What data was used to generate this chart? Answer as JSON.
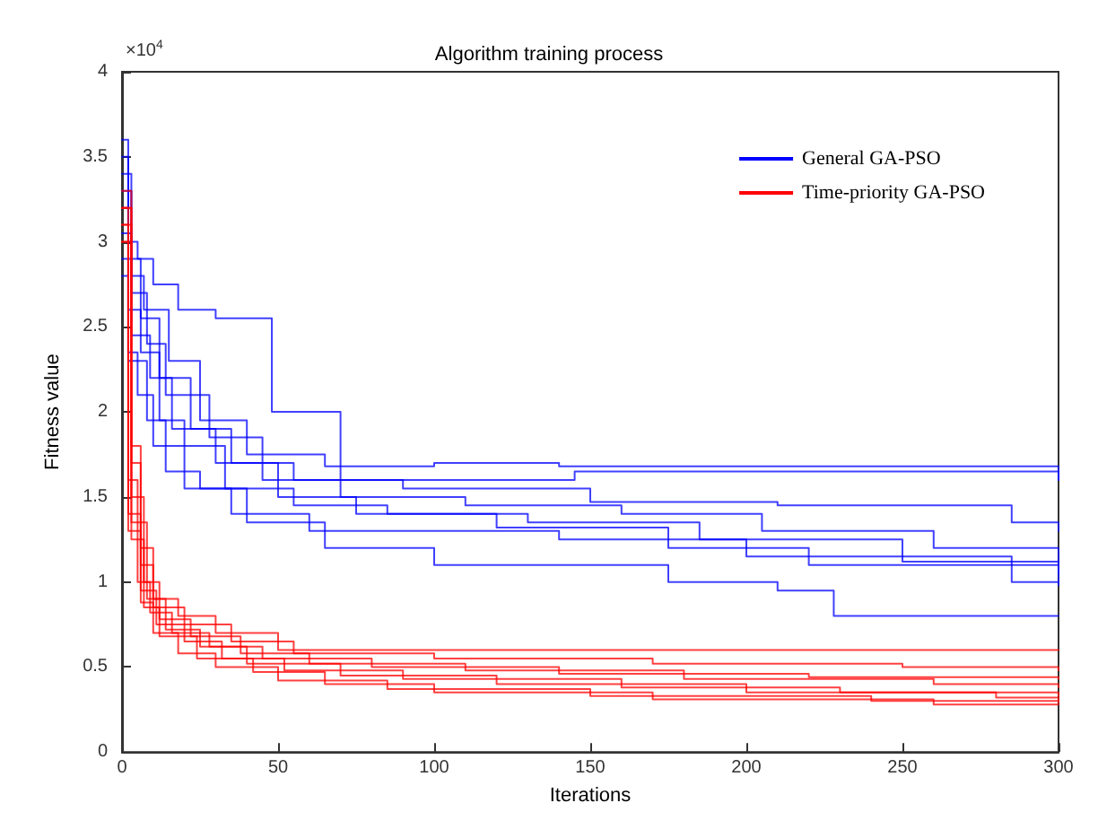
{
  "chart_data": {
    "type": "step",
    "title": "Algorithm training process",
    "xlabel": "Iterations",
    "ylabel": "Fitness value",
    "annotations": [
      "×10$^{4}$"
    ],
    "xlim": [
      0,
      300
    ],
    "xticks": [
      0,
      50,
      100,
      150,
      200,
      250,
      300
    ],
    "ylim": [
      0,
      4
    ],
    "yticks": [
      0,
      0.5,
      1,
      1.5,
      2,
      2.5,
      3,
      3.5,
      4
    ],
    "grid": false,
    "legend": "top right",
    "marker": "none",
    "line_style": "solid",
    "series": [
      {
        "name": "General GA-PSO",
        "color": "#0000ff",
        "x": [
          0,
          2,
          5,
          10,
          18,
          30,
          48,
          70,
          130,
          145,
          300
        ],
        "values": [
          3.6,
          3.0,
          2.9,
          2.75,
          2.6,
          2.55,
          2.0,
          1.6,
          1.6,
          1.65,
          1.6
        ]
      },
      {
        "color": "#0000ff",
        "x": [
          0,
          3,
          7,
          15,
          25,
          40,
          65,
          100,
          140,
          300
        ],
        "values": [
          3.4,
          2.8,
          2.6,
          2.3,
          1.95,
          1.75,
          1.68,
          1.7,
          1.68,
          1.6
        ]
      },
      {
        "color": "#0000ff",
        "x": [
          0,
          2,
          6,
          12,
          22,
          35,
          55,
          90,
          150,
          210,
          285,
          300
        ],
        "values": [
          3.5,
          2.9,
          2.55,
          2.2,
          1.9,
          1.7,
          1.6,
          1.55,
          1.47,
          1.45,
          1.35,
          1.3
        ]
      },
      {
        "color": "#0000ff",
        "x": [
          0,
          3,
          8,
          14,
          28,
          45,
          70,
          110,
          160,
          205,
          260,
          300
        ],
        "values": [
          3.3,
          2.7,
          2.4,
          2.1,
          1.85,
          1.6,
          1.5,
          1.45,
          1.4,
          1.3,
          1.2,
          1.05
        ]
      },
      {
        "color": "#0000ff",
        "x": [
          0,
          2,
          6,
          12,
          20,
          33,
          55,
          85,
          130,
          185,
          250,
          300
        ],
        "values": [
          3.2,
          2.6,
          2.35,
          1.95,
          1.8,
          1.55,
          1.45,
          1.4,
          1.35,
          1.25,
          1.12,
          1.12
        ]
      },
      {
        "color": "#0000ff",
        "x": [
          0,
          3,
          9,
          16,
          30,
          50,
          75,
          120,
          175,
          220,
          300
        ],
        "values": [
          3.05,
          2.45,
          2.2,
          1.9,
          1.7,
          1.5,
          1.4,
          1.32,
          1.2,
          1.1,
          1.0
        ]
      },
      {
        "color": "#0000ff",
        "x": [
          0,
          2,
          5,
          10,
          20,
          35,
          60,
          100,
          140,
          200,
          285,
          300
        ],
        "values": [
          2.9,
          2.35,
          2.1,
          1.8,
          1.55,
          1.4,
          1.3,
          1.3,
          1.25,
          1.15,
          1.0,
          0.98
        ]
      },
      {
        "color": "#0000ff",
        "x": [
          0,
          2,
          8,
          14,
          25,
          40,
          65,
          100,
          175,
          210,
          228,
          300
        ],
        "values": [
          2.8,
          2.3,
          1.95,
          1.65,
          1.55,
          1.35,
          1.2,
          1.1,
          1.0,
          0.95,
          0.8,
          0.8
        ]
      },
      {
        "name": "Time-priority GA-PSO",
        "color": "#ff0000",
        "x": [
          0,
          3,
          6,
          10,
          18,
          30,
          50,
          100,
          300
        ],
        "values": [
          3.3,
          1.8,
          1.2,
          0.9,
          0.8,
          0.7,
          0.6,
          0.6,
          0.6
        ]
      },
      {
        "color": "#ff0000",
        "x": [
          0,
          3,
          6,
          10,
          20,
          35,
          55,
          100,
          170,
          250,
          300
        ],
        "values": [
          3.2,
          1.7,
          1.1,
          0.85,
          0.75,
          0.65,
          0.58,
          0.55,
          0.52,
          0.5,
          0.48
        ]
      },
      {
        "color": "#ff0000",
        "x": [
          0,
          2,
          5,
          9,
          16,
          28,
          45,
          80,
          140,
          220,
          300
        ],
        "values": [
          3.1,
          1.6,
          1.0,
          0.82,
          0.7,
          0.62,
          0.55,
          0.5,
          0.46,
          0.44,
          0.43
        ]
      },
      {
        "color": "#ff0000",
        "x": [
          0,
          3,
          7,
          12,
          22,
          38,
          60,
          110,
          180,
          260,
          300
        ],
        "values": [
          3.0,
          1.5,
          1.0,
          0.78,
          0.68,
          0.58,
          0.52,
          0.48,
          0.43,
          0.4,
          0.38
        ]
      },
      {
        "color": "#ff0000",
        "x": [
          0,
          2,
          6,
          11,
          20,
          32,
          52,
          90,
          160,
          230,
          300
        ],
        "values": [
          3.2,
          1.4,
          0.95,
          0.75,
          0.65,
          0.55,
          0.48,
          0.43,
          0.38,
          0.35,
          0.33
        ]
      },
      {
        "color": "#ff0000",
        "x": [
          0,
          3,
          8,
          14,
          25,
          40,
          70,
          120,
          200,
          280,
          300
        ],
        "values": [
          3.1,
          1.35,
          0.9,
          0.72,
          0.62,
          0.52,
          0.45,
          0.4,
          0.35,
          0.32,
          0.3
        ]
      },
      {
        "color": "#ff0000",
        "x": [
          0,
          2,
          6,
          10,
          18,
          30,
          50,
          85,
          150,
          240,
          300
        ],
        "values": [
          3.0,
          1.3,
          0.88,
          0.7,
          0.58,
          0.5,
          0.42,
          0.37,
          0.33,
          0.3,
          0.29
        ]
      },
      {
        "color": "#ff0000",
        "x": [
          0,
          3,
          7,
          12,
          24,
          42,
          65,
          100,
          170,
          260,
          300
        ],
        "values": [
          3.2,
          1.25,
          0.85,
          0.68,
          0.55,
          0.47,
          0.4,
          0.35,
          0.31,
          0.28,
          0.28
        ]
      }
    ]
  }
}
